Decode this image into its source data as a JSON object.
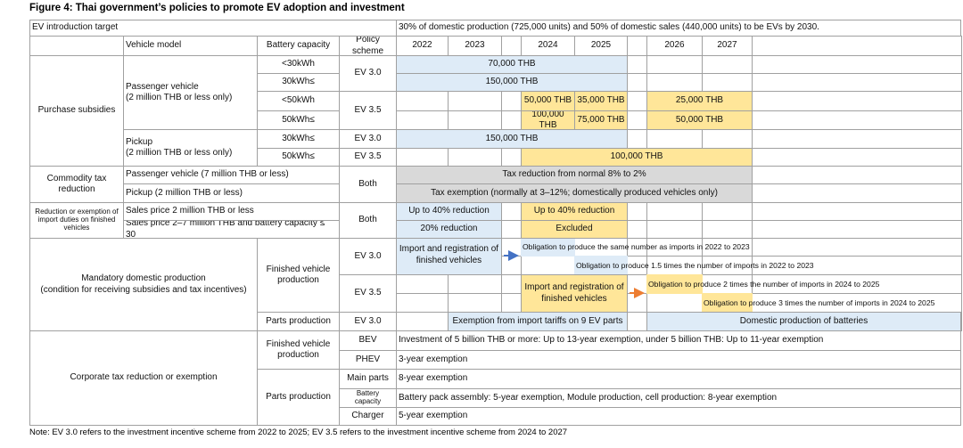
{
  "title": "Figure 4: Thai government’s policies to promote EV adoption and investment",
  "table": {
    "cells": [
      "EV introduction target",
      "30% of domestic production (725,000 units) and 50% of domestic sales (440,000 units) to be EVs by 2030.",
      "Vehicle model",
      "Battery capacity",
      "Policy scheme",
      "2022",
      "2023",
      "2024",
      "2025",
      "2026",
      "2027",
      "Purchase subsidies",
      "Passenger vehicle\n(2 million THB or less only)",
      "<30kWh",
      "30kWh≤",
      "EV 3.0",
      "70,000 THB",
      "150,000 THB",
      "<50kWh",
      "50kWh≤",
      "EV 3.5",
      "50,000 THB",
      "35,000 THB",
      "25,000 THB",
      "100,000 THB",
      "75,000 THB",
      "50,000 THB",
      "Pickup\n(2 million THB or less only)",
      "30kWh≤",
      "50kWh≤",
      "EV 3.0",
      "EV 3.5",
      "150,000 THB",
      "100,000 THB",
      "Commodity tax\nreduction",
      "Passenger vehicle (7 million THB or less)",
      "Pickup (2 million THB or less)",
      "Both",
      "Tax reduction from normal 8% to 2%",
      "Tax exemption (normally at 3–12%; domestically produced vehicles only)",
      "Reduction or exemption of\nimport duties on finished\nvehicles",
      "Sales price 2 million THB or less",
      "Sales price 2–7 million THB and battery capacity ≤ 30",
      "Both",
      "Up to 40% reduction",
      "Up to 40% reduction",
      "20% reduction",
      "Excluded",
      "Mandatory domestic production\n(condition for receiving subsidies and tax incentives)",
      "Finished vehicle\nproduction",
      "EV 3.0",
      "Import and registration of\nfinished vehicles",
      "Obligation to produce the same number as imports in 2022 to 2023",
      "Obligation to produce 1.5 times the number of imports in 2022 to 2023",
      "EV 3.5",
      "Import and registration of\nfinished vehicles",
      "Obligation to produce 2 times the number of imports in 2024 to 2025",
      "Obligation to produce 3 times the number of imports in 2024 to 2025",
      "Parts production",
      "EV 3.0",
      "Exemption from import tariffs on 9 EV parts",
      "Domestic production of batteries",
      "Corporate tax reduction or exemption",
      "Finished vehicle\nproduction",
      "BEV",
      "Investment of 5 billion THB or more: Up to 13-year exemption, under 5 billion THB: Up to 11-year exemption",
      "PHEV",
      "3-year exemption",
      "Parts production",
      "Main parts",
      "8-year exemption",
      "Battery\ncapacity",
      "Battery pack assembly: 5-year exemption, Module production, cell production: 8-year exemption",
      "Charger",
      "5-year exemption"
    ]
  },
  "note": "Note: EV 3.0 refers to the investment incentive scheme from 2022 to 2025; EV 3.5 refers to the investment incentive scheme from 2024 to 2027"
}
